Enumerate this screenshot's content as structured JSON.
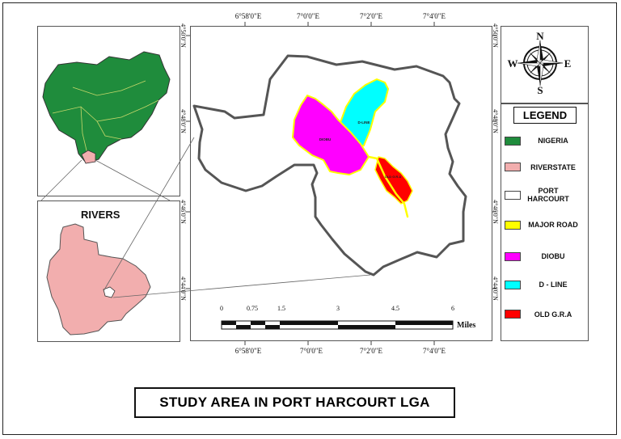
{
  "map_title": "STUDY AREA IN PORT HARCOURT LGA",
  "inset_label": "RIVERS",
  "legend": {
    "heading": "LEGEND",
    "items": [
      {
        "label": "NIGERIA",
        "color": "#1f8c3c"
      },
      {
        "label": "RIVERSTATE",
        "color": "#f2aeae"
      },
      {
        "label": "PORT HARCOURT",
        "color": "#ffffff"
      },
      {
        "label": "MAJOR ROAD",
        "color": "#ffff00"
      },
      {
        "label": "DIOBU",
        "color": "#ff00ff"
      },
      {
        "label": "D - LINE",
        "color": "#00ffff"
      },
      {
        "label": "OLD G.R.A",
        "color": "#ff0000"
      }
    ]
  },
  "north_arrow": {
    "n": "N",
    "s": "S",
    "e": "E",
    "w": "W"
  },
  "graticule": {
    "top": [
      "6°58'0\"E",
      "7°0'0\"E",
      "7°2'0\"E",
      "7°4'0\"E"
    ],
    "bottom": [
      "6°58'0\"E",
      "7°0'0\"E",
      "7°2'0\"E",
      "7°4'0\"E"
    ],
    "left": [
      "4°50'0\"N",
      "4°48'0\"N",
      "4°46'0\"N",
      "4°44'0\"N"
    ],
    "right": [
      "4°50'0\"N",
      "4°48'0\"N",
      "4°46'0\"N",
      "4°44'0\"N"
    ]
  },
  "scale_bar": {
    "ticks": [
      "0",
      "0.75",
      "1.5",
      "3",
      "4.5",
      "6"
    ],
    "unit": "Miles"
  },
  "map_labels": {
    "diobu": "DIOBU",
    "dline": "D-LINE",
    "oldgra": "OLD G.R.A"
  },
  "colors": {
    "nigeria": "#1f8c3c",
    "rivers": "#f2aeae",
    "diobu": "#ff00ff",
    "dline": "#00ffff",
    "oldgra": "#ff0000",
    "road": "#ffff00",
    "outline": "#555555"
  }
}
